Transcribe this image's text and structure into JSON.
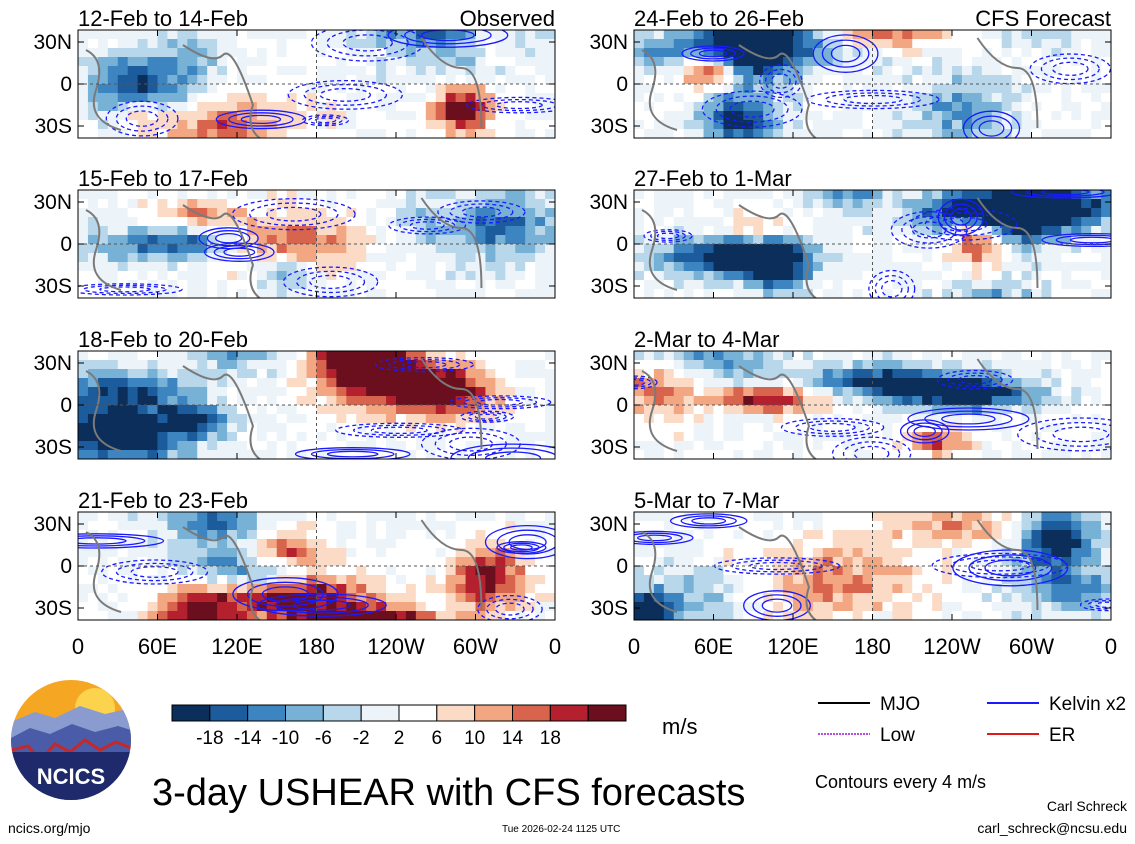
{
  "title": "3-day USHEAR with CFS forecasts",
  "source": "ncics.org/mjo",
  "timestamp": "Tue 2026-02-24 1125 UTC",
  "author": "Carl Schreck",
  "email": "carl_schreck@ncsu.edu",
  "logo_text": "NCICS",
  "units": "m/s",
  "contour_note": "Contours every 4 m/s",
  "column_labels": {
    "observed": "Observed",
    "forecast": "CFS Forecast"
  },
  "lat_labels": [
    "30N",
    "0",
    "30S"
  ],
  "lon_labels": [
    "0",
    "60E",
    "120E",
    "180",
    "120W",
    "60W",
    "0"
  ],
  "colorbar": {
    "ticks": [
      "-18",
      "-14",
      "-10",
      "-6",
      "-2",
      "2",
      "6",
      "10",
      "14",
      "18"
    ],
    "colors": [
      "#0b2e5a",
      "#1d5c9c",
      "#3d85c0",
      "#78b1d6",
      "#b8d7ea",
      "#ecf4f9",
      "#ffffff",
      "#fbdbc6",
      "#f3a682",
      "#d9644d",
      "#b4202e",
      "#6b0f1e"
    ]
  },
  "legend": [
    {
      "label": "MJO",
      "color": "#000000"
    },
    {
      "label": "Kelvin x2",
      "color": "#1a1aff"
    },
    {
      "label": "Low",
      "color": "#b24fe0"
    },
    {
      "label": "ER",
      "color": "#e01a1a"
    }
  ],
  "chart_data": {
    "type": "heatmap",
    "variable": "USHEAR anomaly",
    "units": "m/s",
    "contour_interval": 4,
    "lat_range": [
      "30S",
      "30N"
    ],
    "lon_range": [
      "0",
      "0"
    ],
    "panels": [
      {
        "period": "12-Feb to 14-Feb",
        "kind": "observed",
        "label": "Observed",
        "seed": 11
      },
      {
        "period": "15-Feb to 17-Feb",
        "kind": "observed",
        "seed": 23
      },
      {
        "period": "18-Feb to 20-Feb",
        "kind": "observed",
        "seed": 37
      },
      {
        "period": "21-Feb to 23-Feb",
        "kind": "observed",
        "seed": 41
      },
      {
        "period": "24-Feb to 26-Feb",
        "kind": "forecast",
        "label": "CFS Forecast",
        "seed": 53
      },
      {
        "period": "27-Feb to 1-Mar",
        "kind": "forecast",
        "seed": 67
      },
      {
        "period": "2-Mar to 4-Mar",
        "kind": "forecast",
        "seed": 79
      },
      {
        "period": "5-Mar to 7-Mar",
        "kind": "forecast",
        "seed": 83
      }
    ]
  }
}
